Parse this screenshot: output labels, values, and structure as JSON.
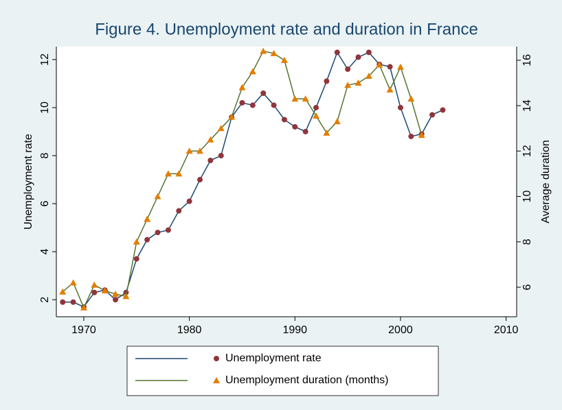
{
  "chart_data": {
    "type": "line",
    "title": "Figure 4. Unemployment rate and duration in France",
    "ylabel": "Unemployment rate",
    "y2label": "Average duration",
    "x": [
      1968,
      1969,
      1970,
      1971,
      1972,
      1973,
      1974,
      1975,
      1976,
      1977,
      1978,
      1979,
      1980,
      1981,
      1982,
      1983,
      1984,
      1985,
      1986,
      1987,
      1988,
      1989,
      1990,
      1991,
      1992,
      1993,
      1994,
      1995,
      1996,
      1997,
      1998,
      1999,
      2000,
      2001,
      2002,
      2003,
      2004
    ],
    "xlim": [
      1967.4,
      2011
    ],
    "xticks": [
      1970,
      1980,
      1990,
      2000,
      2010
    ],
    "ylim": [
      1.29,
      12.54
    ],
    "yticks": [
      2,
      4,
      6,
      8,
      10,
      12
    ],
    "y2lim": [
      4.7,
      16.6
    ],
    "y2ticks": [
      6,
      8,
      10,
      12,
      14,
      16
    ],
    "series": [
      {
        "name": "Unemployment rate",
        "color": "#1a476f",
        "marker_color": "#90353b",
        "marker": "circle",
        "values": [
          1.9,
          1.9,
          1.7,
          2.3,
          2.4,
          2.0,
          2.3,
          3.7,
          4.5,
          4.8,
          4.9,
          5.7,
          6.1,
          7.0,
          7.8,
          8.0,
          9.6,
          10.2,
          10.1,
          10.6,
          10.1,
          9.5,
          9.2,
          9.0,
          10.0,
          11.1,
          12.3,
          11.6,
          12.1,
          12.3,
          11.8,
          11.7,
          10.0,
          8.8,
          8.9,
          9.7,
          9.9
        ]
      },
      {
        "name": "Unemployment duration (months)",
        "color": "#55752f",
        "marker_color": "#e37e00",
        "marker": "triangle",
        "axis": "y2",
        "values": [
          5.8,
          6.2,
          5.1,
          6.1,
          5.85,
          5.7,
          5.6,
          8.0,
          9.0,
          10.0,
          11.0,
          11.0,
          12.0,
          12.0,
          12.5,
          13.0,
          13.5,
          14.8,
          15.5,
          16.4,
          16.3,
          16.0,
          14.3,
          14.3,
          13.55,
          12.8,
          13.3,
          14.9,
          15.0,
          15.3,
          15.8,
          14.7,
          15.7,
          14.3,
          12.7,
          null,
          null
        ]
      }
    ]
  }
}
